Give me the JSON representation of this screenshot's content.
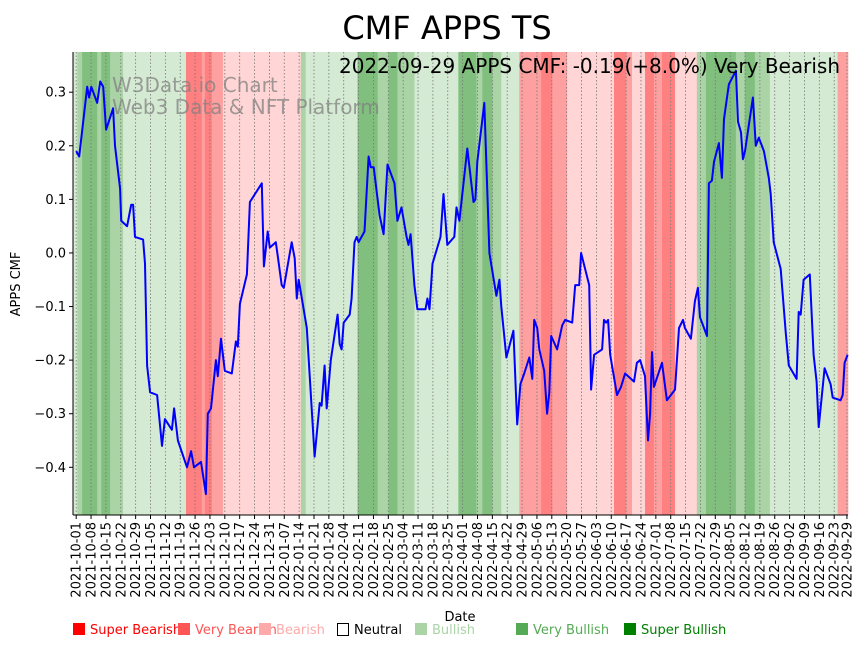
{
  "chart_data": {
    "type": "line",
    "title": "CMF APPS TS",
    "annotation": "2022-09-29 APPS CMF: -0.19(+8.0%) Very Bearish",
    "watermark": [
      "W3Data.io Chart",
      "Web3 Data & NFT Platform"
    ],
    "xlabel": "Date",
    "ylabel": "APPS CMF",
    "x_unit": "days since 2021-10-01",
    "xlim": [
      -1.5,
      363.5
    ],
    "ylim": [
      -0.489,
      0.375
    ],
    "yticks": [
      0.3,
      0.2,
      0.1,
      0.0,
      -0.1,
      -0.2,
      -0.3,
      -0.4
    ],
    "ytick_labels": [
      "0.3",
      "0.2",
      "0.1",
      "0.0",
      "−0.1",
      "−0.2",
      "−0.3",
      "−0.4"
    ],
    "xtick_days": [
      0,
      7,
      14,
      21,
      28,
      35,
      42,
      49,
      56,
      63,
      70,
      77,
      84,
      91,
      98,
      105,
      112,
      119,
      126,
      133,
      140,
      147,
      154,
      161,
      168,
      175,
      182,
      189,
      196,
      203,
      210,
      217,
      224,
      231,
      238,
      245,
      252,
      259,
      266,
      273,
      280,
      287,
      294,
      301,
      308,
      315,
      322,
      329,
      336,
      343,
      350,
      357,
      363
    ],
    "xtick_labels": [
      "2021-10-01",
      "2021-10-08",
      "2021-10-15",
      "2021-10-22",
      "2021-10-29",
      "2021-11-05",
      "2021-11-12",
      "2021-11-19",
      "2021-11-26",
      "2021-12-03",
      "2021-12-10",
      "2021-12-17",
      "2021-12-24",
      "2021-12-31",
      "2022-01-07",
      "2022-01-14",
      "2022-01-21",
      "2022-01-28",
      "2022-02-04",
      "2022-02-11",
      "2022-02-18",
      "2022-02-25",
      "2022-03-04",
      "2022-03-11",
      "2022-03-18",
      "2022-03-25",
      "2022-04-01",
      "2022-04-08",
      "2022-04-15",
      "2022-04-22",
      "2022-04-29",
      "2022-05-06",
      "2022-05-13",
      "2022-05-20",
      "2022-05-27",
      "2022-06-03",
      "2022-06-10",
      "2022-06-17",
      "2022-06-24",
      "2022-07-01",
      "2022-07-08",
      "2022-07-15",
      "2022-07-22",
      "2022-07-29",
      "2022-08-05",
      "2022-08-12",
      "2022-08-19",
      "2022-08-26",
      "2022-09-02",
      "2022-09-09",
      "2022-09-16",
      "2022-09-23",
      "2022-09-29"
    ],
    "grid": "vertical dotted",
    "line_color": "#0000ff",
    "series": [
      {
        "name": "APPS CMF",
        "x": [
          0,
          1.4,
          5.2,
          6.1,
          7.1,
          9.9,
          11.3,
          12.7,
          14.1,
          17.4,
          18.3,
          20.7,
          21.2,
          24,
          25.9,
          26.8,
          27.7,
          31.5,
          32.4,
          33.4,
          34.8,
          38.1,
          40.4,
          41.8,
          45.1,
          46.1,
          47.9,
          52.2,
          54.1,
          55.5,
          58.8,
          61.1,
          62,
          63.5,
          65.8,
          66.7,
          68.2,
          70,
          73.3,
          75.2,
          76.1,
          77.1,
          80.4,
          81.8,
          87.4,
          88.4,
          90.2,
          91.2,
          94,
          94.9,
          96.8,
          97.8,
          101.5,
          102.9,
          103.9,
          104.8,
          108.6,
          112.3,
          114.7,
          115.6,
          117,
          118,
          119.9,
          123.1,
          124.1,
          125,
          126,
          128.8,
          129.7,
          131.1,
          132.1,
          133,
          135.8,
          137.7,
          138.7,
          140.1,
          142.9,
          144.8,
          146.6,
          149.9,
          151.3,
          153.2,
          155.6,
          156.5,
          157.5,
          159.3,
          160.7,
          164.5,
          165.4,
          166.4,
          167.8,
          171.6,
          173,
          174.8,
          178.1,
          179.1,
          180.5,
          184.2,
          187.1,
          188,
          188.9,
          192.2,
          194.6,
          197.9,
          199.3,
          200.2,
          202.6,
          205.9,
          207.7,
          209.2,
          211,
          213.4,
          214.8,
          215.7,
          217.1,
          218.1,
          220.4,
          221.8,
          222.8,
          223.7,
          226.5,
          228.9,
          230.3,
          233.6,
          235,
          236.9,
          237.8,
          241.6,
          242.5,
          243.9,
          247.7,
          248.6,
          249.6,
          250.5,
          251.5,
          254.7,
          256.6,
          258.5,
          262.7,
          264.1,
          265.6,
          267.9,
          269.3,
          270.3,
          271.2,
          272.1,
          275.9,
          278.2,
          282,
          283.9,
          285.8,
          286.7,
          289.5,
          291.4,
          292.8,
          293.8,
          297.1,
          298,
          299.4,
          300.4,
          302.7,
          304.1,
          305.1,
          307.4,
          310.7,
          311.7,
          313.1,
          314,
          315,
          318.7,
          320.1,
          321.5,
          323.9,
          326.2,
          327.1,
          328.5,
          331.8,
          334.2,
          335.6,
          339.3,
          340.3,
          341.2,
          342.6,
          345.5,
          347.3,
          348.7,
          349.7,
          352.5,
          353.9,
          355.3,
          356.3,
          360,
          361,
          361.9,
          363.3
        ],
        "y": [
          0.19,
          0.18,
          0.31,
          0.29,
          0.31,
          0.28,
          0.32,
          0.31,
          0.23,
          0.27,
          0.2,
          0.12,
          0.06,
          0.05,
          0.09,
          0.09,
          0.03,
          0.025,
          -0.02,
          -0.21,
          -0.26,
          -0.265,
          -0.36,
          -0.31,
          -0.33,
          -0.29,
          -0.35,
          -0.4,
          -0.37,
          -0.4,
          -0.39,
          -0.45,
          -0.3,
          -0.29,
          -0.2,
          -0.23,
          -0.16,
          -0.22,
          -0.225,
          -0.165,
          -0.175,
          -0.095,
          -0.04,
          0.095,
          0.13,
          -0.025,
          0.04,
          0.01,
          0.02,
          -0.005,
          -0.06,
          -0.065,
          0.02,
          -0.01,
          -0.085,
          -0.05,
          -0.14,
          -0.38,
          -0.28,
          -0.285,
          -0.21,
          -0.29,
          -0.2,
          -0.115,
          -0.17,
          -0.18,
          -0.13,
          -0.115,
          -0.085,
          0.02,
          0.03,
          0.02,
          0.04,
          0.18,
          0.16,
          0.16,
          0.07,
          0.035,
          0.165,
          0.13,
          0.06,
          0.085,
          0.03,
          0.015,
          0.035,
          -0.06,
          -0.105,
          -0.105,
          -0.085,
          -0.105,
          -0.02,
          0.03,
          0.11,
          0.015,
          0.03,
          0.085,
          0.06,
          0.195,
          0.095,
          0.1,
          0.17,
          0.28,
          0.0,
          -0.08,
          -0.05,
          -0.1,
          -0.195,
          -0.145,
          -0.32,
          -0.245,
          -0.225,
          -0.195,
          -0.235,
          -0.125,
          -0.14,
          -0.18,
          -0.22,
          -0.3,
          -0.26,
          -0.155,
          -0.18,
          -0.135,
          -0.125,
          -0.13,
          -0.06,
          -0.06,
          0.0,
          -0.06,
          -0.255,
          -0.19,
          -0.18,
          -0.125,
          -0.13,
          -0.125,
          -0.19,
          -0.265,
          -0.25,
          -0.225,
          -0.24,
          -0.205,
          -0.2,
          -0.23,
          -0.35,
          -0.3,
          -0.185,
          -0.25,
          -0.205,
          -0.275,
          -0.255,
          -0.14,
          -0.125,
          -0.14,
          -0.16,
          -0.09,
          -0.065,
          -0.12,
          -0.155,
          0.13,
          0.135,
          0.17,
          0.205,
          0.14,
          0.25,
          0.315,
          0.34,
          0.245,
          0.225,
          0.175,
          0.19,
          0.29,
          0.2,
          0.215,
          0.19,
          0.14,
          0.11,
          0.02,
          -0.03,
          -0.15,
          -0.21,
          -0.235,
          -0.11,
          -0.115,
          -0.05,
          -0.04,
          -0.19,
          -0.24,
          -0.325,
          -0.215,
          -0.23,
          -0.245,
          -0.27,
          -0.275,
          -0.265,
          -0.205,
          -0.19
        ]
      }
    ],
    "band_colors": {
      "bullish": "#d5ead3",
      "very_bullish": "#aad4a6",
      "super_bullish": "#80bf7d",
      "bearish": "#ffd5d5",
      "very_bearish": "#ffa0a0",
      "super_bearish": "#ff8080"
    },
    "bands": [
      [
        -1.5,
        0.5,
        "bullish"
      ],
      [
        0.5,
        2.8,
        "very_bullish"
      ],
      [
        2.8,
        9.9,
        "super_bullish"
      ],
      [
        9.9,
        11.8,
        "very_bullish"
      ],
      [
        11.8,
        16,
        "super_bullish"
      ],
      [
        16,
        22.1,
        "very_bullish"
      ],
      [
        22.1,
        51.7,
        "bullish"
      ],
      [
        51.7,
        59.2,
        "super_bearish"
      ],
      [
        59.2,
        60.6,
        "very_bearish"
      ],
      [
        60.6,
        63.9,
        "super_bearish"
      ],
      [
        63.9,
        69.1,
        "very_bearish"
      ],
      [
        69.1,
        105.8,
        "bearish"
      ],
      [
        105.8,
        108.1,
        "very_bullish"
      ],
      [
        108.1,
        132.5,
        "bullish"
      ],
      [
        132.5,
        142,
        "super_bullish"
      ],
      [
        142,
        147.1,
        "very_bullish"
      ],
      [
        147.1,
        151.3,
        "super_bullish"
      ],
      [
        151.3,
        159.3,
        "very_bullish"
      ],
      [
        159.3,
        180,
        "bullish"
      ],
      [
        180,
        188.5,
        "super_bullish"
      ],
      [
        188.5,
        191.3,
        "very_bullish"
      ],
      [
        191.3,
        196,
        "super_bullish"
      ],
      [
        196,
        200.2,
        "very_bullish"
      ],
      [
        200.2,
        208.7,
        "bullish"
      ],
      [
        208.7,
        211.5,
        "very_bearish"
      ],
      [
        211.5,
        219,
        "very_bearish"
      ],
      [
        219,
        224.2,
        "super_bearish"
      ],
      [
        224.2,
        231.2,
        "very_bearish"
      ],
      [
        231.2,
        253.3,
        "bearish"
      ],
      [
        253.3,
        259,
        "super_bearish"
      ],
      [
        259,
        261.8,
        "very_bearish"
      ],
      [
        261.8,
        267.9,
        "bearish"
      ],
      [
        267.9,
        272.1,
        "super_bearish"
      ],
      [
        272.1,
        275.9,
        "very_bearish"
      ],
      [
        275.9,
        282,
        "super_bearish"
      ],
      [
        282,
        292.3,
        "bearish"
      ],
      [
        292.3,
        296.6,
        "very_bullish"
      ],
      [
        296.6,
        310.7,
        "super_bullish"
      ],
      [
        310.7,
        314.9,
        "very_bullish"
      ],
      [
        314.9,
        319.6,
        "super_bullish"
      ],
      [
        319.6,
        326.7,
        "very_bullish"
      ],
      [
        326.7,
        358.6,
        "bullish"
      ],
      [
        358.6,
        363.5,
        "very_bearish"
      ]
    ],
    "legend": {
      "placement": "bottom",
      "items": [
        {
          "label": "Super Bearish",
          "color": "#ff0000"
        },
        {
          "label": "Very Bearish",
          "color": "#ff5555"
        },
        {
          "label": "Bearish",
          "color": "#ffaaaa"
        },
        {
          "label": "Neutral",
          "color": "#000000",
          "outline": true
        },
        {
          "label": "Bullish",
          "color": "#aad4a6"
        },
        {
          "label": "Very Bullish",
          "color": "#55aa55"
        },
        {
          "label": "Super Bullish",
          "color": "#008000"
        }
      ]
    }
  }
}
